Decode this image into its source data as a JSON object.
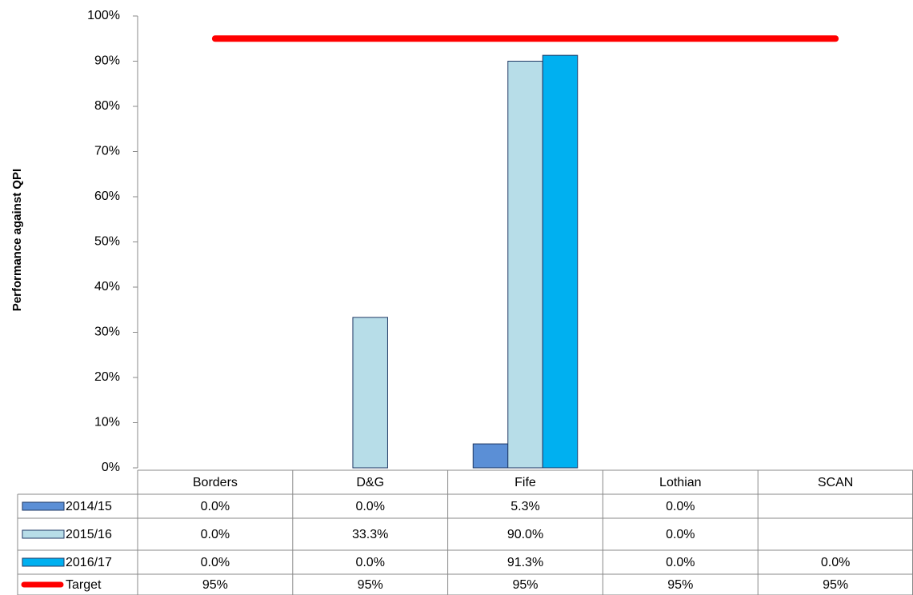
{
  "chart_data": {
    "type": "bar",
    "y_label": "Performance against QPI",
    "categories": [
      "Borders",
      "D&G",
      "Fife",
      "Lothian",
      "SCAN"
    ],
    "ylim": [
      0,
      100
    ],
    "yticks": [
      {
        "value": 0,
        "label": "0%"
      },
      {
        "value": 10,
        "label": "10%"
      },
      {
        "value": 20,
        "label": "20%"
      },
      {
        "value": 30,
        "label": "30%"
      },
      {
        "value": 40,
        "label": "40%"
      },
      {
        "value": 50,
        "label": "50%"
      },
      {
        "value": 60,
        "label": "60%"
      },
      {
        "value": 70,
        "label": "70%"
      },
      {
        "value": 80,
        "label": "80%"
      },
      {
        "value": 90,
        "label": "90%"
      },
      {
        "value": 100,
        "label": "100%"
      }
    ],
    "series": [
      {
        "name": "2014/15",
        "type": "bar",
        "color": "#5b8fd6",
        "values": [
          0,
          0,
          5.3,
          0,
          null
        ],
        "value_labels": [
          "0.0%",
          "0.0%",
          "5.3%",
          "0.0%",
          null
        ]
      },
      {
        "name": "2015/16",
        "type": "bar",
        "color": "#b7dde8",
        "values": [
          0,
          33.3,
          90,
          0,
          null
        ],
        "value_labels": [
          "0.0%",
          "33.3%",
          "90.0%",
          "0.0%",
          null
        ]
      },
      {
        "name": "2016/17",
        "type": "bar",
        "color": "#00b0f0",
        "values": [
          0,
          0,
          91.3,
          0,
          0
        ],
        "value_labels": [
          "0.0%",
          "0.0%",
          "91.3%",
          "0.0%",
          "0.0%"
        ]
      },
      {
        "name": "Target",
        "type": "line",
        "color": "#ff0000",
        "values": [
          95,
          95,
          95,
          95,
          95
        ],
        "value_labels": [
          "95%",
          "95%",
          "95%",
          "95%",
          "95%"
        ]
      }
    ]
  }
}
